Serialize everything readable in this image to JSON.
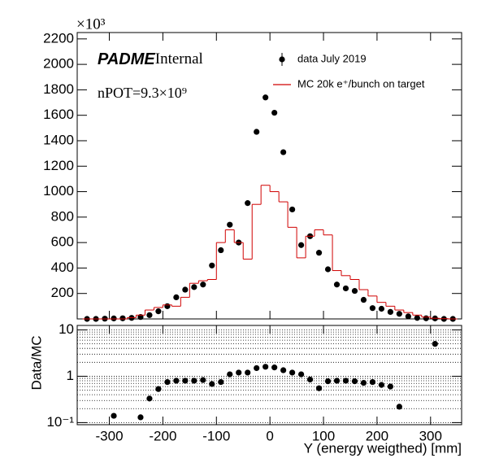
{
  "chart_data": [
    {
      "type": "histogram",
      "y_multiplier": "×10³",
      "annotations": [
        "PADME",
        "Internal",
        "nPOT=9.3×10⁹"
      ],
      "bins": [
        -350,
        -333.3,
        -316.7,
        -300,
        -283.3,
        -266.7,
        -250,
        -233.3,
        -216.7,
        -200,
        -183.3,
        -166.7,
        -150,
        -133.3,
        -116.7,
        -100,
        -83.3,
        -66.7,
        -50,
        -33.3,
        -16.7,
        0,
        16.7,
        33.3,
        50,
        66.7,
        83.3,
        100,
        116.7,
        133.3,
        150,
        166.7,
        183.3,
        200,
        216.7,
        233.3,
        250,
        266.7,
        283.3,
        300,
        316.7,
        333.3,
        350
      ],
      "series": [
        {
          "name": "data July 2019",
          "color": "#000000",
          "style": "points",
          "values": [
            0,
            0,
            2,
            4,
            5,
            8,
            15,
            30,
            60,
            100,
            170,
            230,
            250,
            270,
            420,
            540,
            740,
            600,
            910,
            1470,
            1740,
            1620,
            1310,
            860,
            580,
            650,
            520,
            390,
            270,
            240,
            220,
            150,
            85,
            80,
            55,
            40,
            20,
            8,
            5,
            4,
            0,
            0
          ]
        },
        {
          "name": "MC 20k e⁺/bunch on target",
          "color": "#d00000",
          "style": "step",
          "values": [
            0,
            0,
            0,
            0,
            0,
            10,
            30,
            70,
            90,
            110,
            100,
            170,
            280,
            300,
            310,
            600,
            700,
            600,
            470,
            900,
            1050,
            1000,
            920,
            720,
            480,
            650,
            700,
            660,
            380,
            340,
            310,
            230,
            180,
            130,
            100,
            70,
            50,
            30,
            15,
            5,
            2,
            0
          ]
        }
      ],
      "xlim": [
        -360,
        358
      ],
      "xticks": [
        -300,
        -200,
        -100,
        0,
        100,
        200,
        300
      ],
      "ylim": [
        0,
        2250
      ],
      "yticks": [
        200,
        400,
        600,
        800,
        1000,
        1200,
        1400,
        1600,
        1800,
        2000,
        2200
      ],
      "legend": "top-right"
    },
    {
      "type": "histogram",
      "xlabel": "Y (energy weigthed) [mm]",
      "ylabel": "Data/MC",
      "bins": [
        -350,
        -333.3,
        -316.7,
        -300,
        -283.3,
        -266.7,
        -250,
        -233.3,
        -216.7,
        -200,
        -183.3,
        -166.7,
        -150,
        -133.3,
        -116.7,
        -100,
        -83.3,
        -66.7,
        -50,
        -33.3,
        -16.7,
        0,
        16.7,
        33.3,
        50,
        66.7,
        83.3,
        100,
        116.7,
        133.3,
        150,
        166.7,
        183.3,
        200,
        216.7,
        233.3,
        250,
        266.7,
        283.3,
        300,
        316.7,
        333.3,
        350
      ],
      "series": [
        {
          "color": "#000000",
          "style": "points",
          "values": [
            null,
            null,
            null,
            0.14,
            null,
            null,
            0.13,
            0.33,
            0.53,
            0.75,
            0.8,
            0.8,
            0.8,
            0.83,
            0.68,
            0.75,
            1.1,
            1.2,
            1.2,
            1.5,
            1.6,
            1.55,
            1.35,
            1.2,
            1.1,
            0.85,
            0.55,
            0.78,
            0.8,
            0.8,
            0.78,
            0.72,
            0.75,
            0.65,
            0.6,
            0.22,
            null,
            null,
            null,
            5.0,
            null,
            null
          ]
        }
      ],
      "xlim": [
        -360,
        358
      ],
      "xticks": [
        -300,
        -200,
        -100,
        0,
        100,
        200,
        300
      ],
      "ylim": [
        0.09,
        12.5
      ],
      "log_y": true,
      "yticks": [
        {
          "value": 0.1,
          "label": "10⁻¹"
        },
        1,
        10
      ],
      "yminor": [
        0.2,
        0.3,
        0.4,
        0.5,
        0.6,
        0.7,
        0.8,
        0.9,
        2,
        3,
        4,
        5,
        6,
        7,
        8,
        9
      ],
      "grid": true
    }
  ]
}
